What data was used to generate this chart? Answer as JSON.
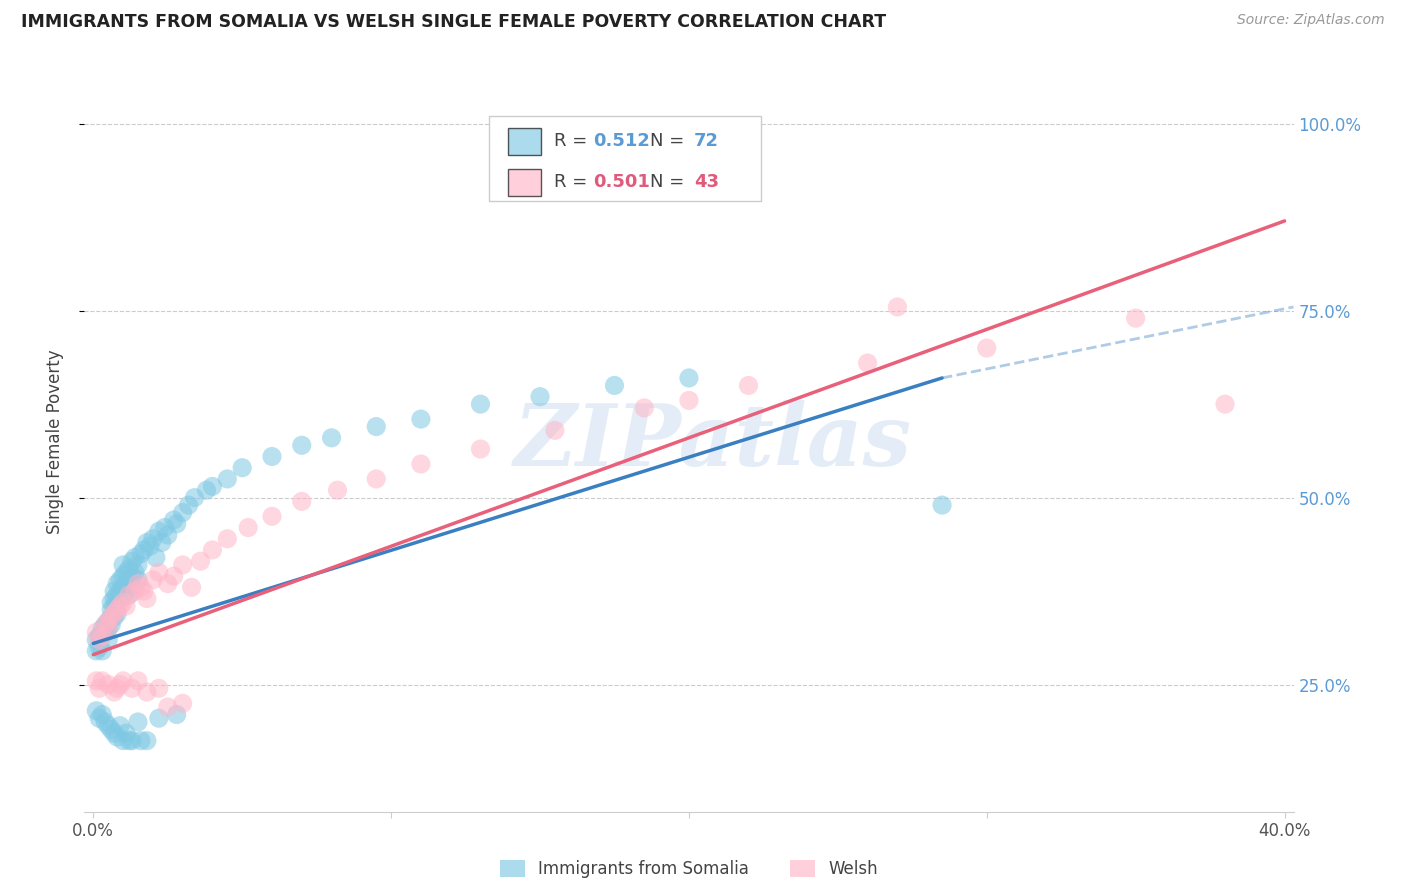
{
  "title": "IMMIGRANTS FROM SOMALIA VS WELSH SINGLE FEMALE POVERTY CORRELATION CHART",
  "source": "Source: ZipAtlas.com",
  "ylabel": "Single Female Poverty",
  "y_ticks": [
    0.25,
    0.5,
    0.75,
    1.0
  ],
  "y_tick_labels": [
    "25.0%",
    "50.0%",
    "75.0%",
    "100.0%"
  ],
  "xlim": [
    -0.003,
    0.403
  ],
  "ylim": [
    0.08,
    1.07
  ],
  "R_somalia": "0.512",
  "N_somalia": "72",
  "R_welsh": "0.501",
  "N_welsh": "43",
  "somalia_color": "#7ec8e3",
  "welsh_color": "#ffb6c8",
  "somalia_line_color": "#3a7fc1",
  "welsh_line_color": "#e8607a",
  "watermark_text": "ZIPatlas",
  "somalia_points_x": [
    0.001,
    0.001,
    0.002,
    0.002,
    0.003,
    0.003,
    0.003,
    0.004,
    0.004,
    0.005,
    0.005,
    0.005,
    0.006,
    0.006,
    0.006,
    0.006,
    0.007,
    0.007,
    0.007,
    0.007,
    0.008,
    0.008,
    0.008,
    0.008,
    0.009,
    0.009,
    0.009,
    0.01,
    0.01,
    0.01,
    0.01,
    0.011,
    0.011,
    0.011,
    0.012,
    0.012,
    0.012,
    0.013,
    0.013,
    0.014,
    0.014,
    0.015,
    0.015,
    0.016,
    0.017,
    0.018,
    0.019,
    0.02,
    0.021,
    0.022,
    0.023,
    0.024,
    0.025,
    0.027,
    0.028,
    0.03,
    0.032,
    0.034,
    0.038,
    0.04,
    0.045,
    0.05,
    0.06,
    0.07,
    0.08,
    0.095,
    0.11,
    0.13,
    0.15,
    0.175,
    0.2,
    0.285
  ],
  "somalia_points_y": [
    0.31,
    0.295,
    0.315,
    0.3,
    0.325,
    0.315,
    0.295,
    0.33,
    0.32,
    0.335,
    0.325,
    0.31,
    0.34,
    0.35,
    0.36,
    0.33,
    0.355,
    0.365,
    0.375,
    0.34,
    0.37,
    0.385,
    0.36,
    0.345,
    0.375,
    0.39,
    0.365,
    0.38,
    0.395,
    0.41,
    0.37,
    0.385,
    0.4,
    0.375,
    0.39,
    0.405,
    0.37,
    0.395,
    0.415,
    0.4,
    0.42,
    0.41,
    0.39,
    0.425,
    0.43,
    0.44,
    0.435,
    0.445,
    0.42,
    0.455,
    0.44,
    0.46,
    0.45,
    0.47,
    0.465,
    0.48,
    0.49,
    0.5,
    0.51,
    0.515,
    0.525,
    0.54,
    0.555,
    0.57,
    0.58,
    0.595,
    0.605,
    0.625,
    0.635,
    0.65,
    0.66,
    0.49
  ],
  "welsh_points_x": [
    0.001,
    0.002,
    0.003,
    0.004,
    0.005,
    0.005,
    0.006,
    0.007,
    0.008,
    0.009,
    0.01,
    0.011,
    0.012,
    0.014,
    0.015,
    0.016,
    0.017,
    0.018,
    0.02,
    0.022,
    0.025,
    0.027,
    0.03,
    0.033,
    0.036,
    0.04,
    0.045,
    0.052,
    0.06,
    0.07,
    0.082,
    0.095,
    0.11,
    0.13,
    0.155,
    0.185,
    0.22,
    0.26,
    0.3,
    0.35,
    0.2,
    0.27,
    0.38
  ],
  "welsh_points_y": [
    0.32,
    0.31,
    0.315,
    0.33,
    0.325,
    0.335,
    0.34,
    0.345,
    0.35,
    0.355,
    0.36,
    0.355,
    0.37,
    0.375,
    0.385,
    0.38,
    0.375,
    0.365,
    0.39,
    0.4,
    0.385,
    0.395,
    0.41,
    0.38,
    0.415,
    0.43,
    0.445,
    0.46,
    0.475,
    0.495,
    0.51,
    0.525,
    0.545,
    0.565,
    0.59,
    0.62,
    0.65,
    0.68,
    0.7,
    0.74,
    0.63,
    0.755,
    0.625
  ],
  "somalia_line": {
    "x0": 0.0,
    "x1": 0.285,
    "y0": 0.305,
    "y1": 0.66
  },
  "welsh_line": {
    "x0": 0.0,
    "x1": 0.4,
    "y0": 0.29,
    "y1": 0.87
  },
  "dashed_line": {
    "x0": 0.285,
    "x1": 0.403,
    "y0": 0.66,
    "y1": 0.755
  },
  "somalia_below_points_x": [
    0.001,
    0.002,
    0.003,
    0.004,
    0.005,
    0.006,
    0.007,
    0.008,
    0.009,
    0.01,
    0.011,
    0.012,
    0.013,
    0.015,
    0.016,
    0.018,
    0.022,
    0.028
  ],
  "somalia_below_points_y": [
    0.215,
    0.205,
    0.21,
    0.2,
    0.195,
    0.19,
    0.185,
    0.18,
    0.195,
    0.175,
    0.185,
    0.175,
    0.175,
    0.2,
    0.175,
    0.175,
    0.205,
    0.21
  ],
  "welsh_below_points_x": [
    0.001,
    0.002,
    0.003,
    0.005,
    0.007,
    0.008,
    0.009,
    0.01,
    0.013,
    0.015,
    0.018,
    0.022,
    0.025,
    0.03
  ],
  "welsh_below_points_y": [
    0.255,
    0.245,
    0.255,
    0.25,
    0.24,
    0.245,
    0.25,
    0.255,
    0.245,
    0.255,
    0.24,
    0.245,
    0.22,
    0.225
  ]
}
